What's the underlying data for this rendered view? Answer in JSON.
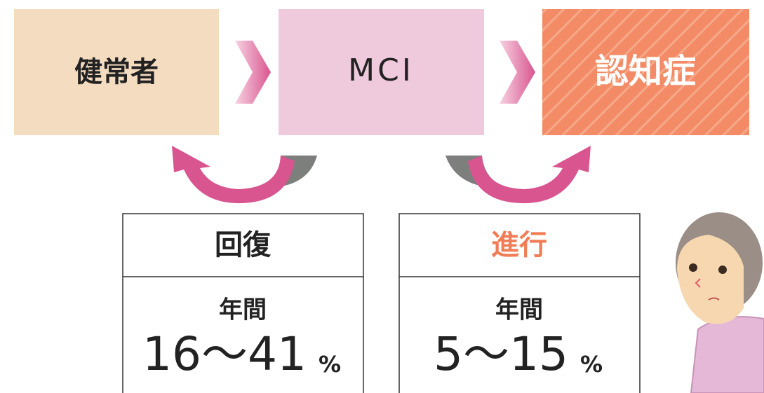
{
  "nodes": [
    {
      "label": "健常者"
    },
    {
      "label": "MCI"
    },
    {
      "label": "認知症"
    }
  ],
  "boxes": [
    {
      "title": "回復",
      "period": "年間",
      "range": "16～41",
      "unit": "%"
    },
    {
      "title": "進行",
      "period": "年間",
      "range": "5～15",
      "unit": "%"
    }
  ]
}
